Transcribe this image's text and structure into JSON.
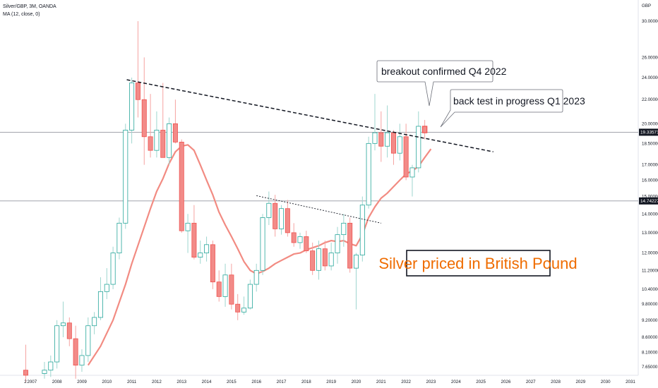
{
  "header": {
    "symbol_line": "Silver/GBP, 3M, OANDA",
    "indicator_line": "MA (12, close, 0)"
  },
  "chart_data": {
    "type": "candlestick",
    "currency_label": "GBP",
    "x_ticks": [
      "2",
      "2007",
      "2008",
      "2009",
      "2010",
      "2011",
      "2012",
      "2013",
      "2014",
      "2015",
      "2016",
      "2017",
      "2018",
      "2019",
      "2020",
      "2021",
      "2022",
      "2023",
      "2024",
      "2025",
      "2026",
      "2027",
      "2028",
      "2029",
      "2030",
      "2031"
    ],
    "y_ticks": [
      "30.00000",
      "26.00000",
      "24.00000",
      "22.00000",
      "20.00000",
      "18.50000",
      "17.00000",
      "16.00000",
      "15.00000",
      "14.00000",
      "13.00000",
      "12.00000",
      "11.20000",
      "10.40000",
      "9.80000",
      "9.20000",
      "8.60000",
      "8.10000",
      "7.65000"
    ],
    "price_lines": [
      {
        "label": "19.33571",
        "value": 19.34
      },
      {
        "label": "14.74227",
        "value": 14.74
      }
    ],
    "candles": [
      {
        "t": 2006.75,
        "o": 7.55,
        "h": 8.35,
        "l": 7.2,
        "c": 7.4
      },
      {
        "t": 2007.5,
        "o": 7.45,
        "h": 7.8,
        "l": 7.3,
        "c": 7.55
      },
      {
        "t": 2007.75,
        "o": 7.55,
        "h": 8.0,
        "l": 7.35,
        "c": 7.8
      },
      {
        "t": 2008.0,
        "o": 7.8,
        "h": 9.2,
        "l": 7.6,
        "c": 9.0
      },
      {
        "t": 2008.25,
        "o": 9.0,
        "h": 9.9,
        "l": 8.6,
        "c": 9.1
      },
      {
        "t": 2008.5,
        "o": 9.1,
        "h": 9.3,
        "l": 8.3,
        "c": 8.55
      },
      {
        "t": 2008.75,
        "o": 8.55,
        "h": 9.0,
        "l": 7.3,
        "c": 7.7
      },
      {
        "t": 2009.0,
        "o": 7.7,
        "h": 8.2,
        "l": 7.5,
        "c": 8.0
      },
      {
        "t": 2009.25,
        "o": 8.0,
        "h": 9.3,
        "l": 7.8,
        "c": 9.0
      },
      {
        "t": 2009.5,
        "o": 9.0,
        "h": 9.5,
        "l": 8.7,
        "c": 9.3
      },
      {
        "t": 2009.75,
        "o": 9.3,
        "h": 10.9,
        "l": 9.2,
        "c": 10.3
      },
      {
        "t": 2010.0,
        "o": 10.3,
        "h": 11.3,
        "l": 10.0,
        "c": 10.6
      },
      {
        "t": 2010.25,
        "o": 10.6,
        "h": 12.3,
        "l": 10.4,
        "c": 12.0
      },
      {
        "t": 2010.5,
        "o": 12.0,
        "h": 13.8,
        "l": 11.7,
        "c": 13.5
      },
      {
        "t": 2010.75,
        "o": 13.5,
        "h": 20.0,
        "l": 13.2,
        "c": 19.5
      },
      {
        "t": 2011.0,
        "o": 19.5,
        "h": 24.0,
        "l": 18.5,
        "c": 23.5
      },
      {
        "t": 2011.25,
        "o": 23.5,
        "h": 30.0,
        "l": 20.5,
        "c": 22.0
      },
      {
        "t": 2011.5,
        "o": 22.0,
        "h": 26.0,
        "l": 17.0,
        "c": 19.0
      },
      {
        "t": 2011.75,
        "o": 19.0,
        "h": 22.5,
        "l": 17.5,
        "c": 18.0
      },
      {
        "t": 2012.0,
        "o": 18.0,
        "h": 21.0,
        "l": 17.5,
        "c": 19.5
      },
      {
        "t": 2012.25,
        "o": 19.5,
        "h": 23.5,
        "l": 17.5,
        "c": 17.5
      },
      {
        "t": 2012.5,
        "o": 17.5,
        "h": 20.5,
        "l": 17.0,
        "c": 20.0
      },
      {
        "t": 2012.75,
        "o": 20.0,
        "h": 22.0,
        "l": 18.5,
        "c": 18.6
      },
      {
        "t": 2013.0,
        "o": 18.6,
        "h": 18.8,
        "l": 13.0,
        "c": 13.1
      },
      {
        "t": 2013.25,
        "o": 13.1,
        "h": 14.0,
        "l": 12.0,
        "c": 13.5
      },
      {
        "t": 2013.5,
        "o": 13.5,
        "h": 14.5,
        "l": 11.7,
        "c": 11.8
      },
      {
        "t": 2013.75,
        "o": 11.8,
        "h": 12.6,
        "l": 11.5,
        "c": 12.0
      },
      {
        "t": 2014.0,
        "o": 12.0,
        "h": 12.8,
        "l": 11.6,
        "c": 12.4
      },
      {
        "t": 2014.25,
        "o": 12.4,
        "h": 12.6,
        "l": 10.4,
        "c": 10.7
      },
      {
        "t": 2014.5,
        "o": 10.7,
        "h": 11.2,
        "l": 9.9,
        "c": 10.1
      },
      {
        "t": 2014.75,
        "o": 10.1,
        "h": 11.5,
        "l": 9.7,
        "c": 11.0
      },
      {
        "t": 2015.0,
        "o": 11.0,
        "h": 11.5,
        "l": 9.6,
        "c": 9.8
      },
      {
        "t": 2015.25,
        "o": 9.8,
        "h": 10.2,
        "l": 9.2,
        "c": 9.5
      },
      {
        "t": 2015.5,
        "o": 9.5,
        "h": 10.1,
        "l": 9.4,
        "c": 9.65
      },
      {
        "t": 2015.75,
        "o": 9.65,
        "h": 10.8,
        "l": 9.6,
        "c": 10.6
      },
      {
        "t": 2016.0,
        "o": 10.6,
        "h": 11.5,
        "l": 10.3,
        "c": 11.2
      },
      {
        "t": 2016.25,
        "o": 11.2,
        "h": 14.0,
        "l": 11.0,
        "c": 13.8
      },
      {
        "t": 2016.5,
        "o": 13.8,
        "h": 15.3,
        "l": 13.4,
        "c": 14.6
      },
      {
        "t": 2016.75,
        "o": 14.6,
        "h": 15.1,
        "l": 12.8,
        "c": 13.2
      },
      {
        "t": 2017.0,
        "o": 13.2,
        "h": 14.5,
        "l": 12.9,
        "c": 14.3
      },
      {
        "t": 2017.25,
        "o": 14.3,
        "h": 14.8,
        "l": 12.8,
        "c": 13.0
      },
      {
        "t": 2017.5,
        "o": 13.0,
        "h": 13.5,
        "l": 12.3,
        "c": 12.5
      },
      {
        "t": 2017.75,
        "o": 12.5,
        "h": 13.0,
        "l": 12.2,
        "c": 12.8
      },
      {
        "t": 2018.0,
        "o": 12.8,
        "h": 13.1,
        "l": 12.0,
        "c": 12.1
      },
      {
        "t": 2018.25,
        "o": 12.1,
        "h": 12.5,
        "l": 11.0,
        "c": 11.2
      },
      {
        "t": 2018.5,
        "o": 11.2,
        "h": 12.6,
        "l": 10.8,
        "c": 12.2
      },
      {
        "t": 2018.75,
        "o": 12.2,
        "h": 12.6,
        "l": 11.2,
        "c": 11.4
      },
      {
        "t": 2019.0,
        "o": 11.4,
        "h": 12.5,
        "l": 11.2,
        "c": 12.0
      },
      {
        "t": 2019.25,
        "o": 12.0,
        "h": 13.3,
        "l": 11.5,
        "c": 12.9
      },
      {
        "t": 2019.5,
        "o": 12.9,
        "h": 14.0,
        "l": 12.3,
        "c": 13.5
      },
      {
        "t": 2019.75,
        "o": 13.5,
        "h": 13.8,
        "l": 11.1,
        "c": 11.3
      },
      {
        "t": 2020.0,
        "o": 11.3,
        "h": 12.0,
        "l": 9.6,
        "c": 11.9
      },
      {
        "t": 2020.25,
        "o": 11.9,
        "h": 15.0,
        "l": 11.6,
        "c": 14.5
      },
      {
        "t": 2020.5,
        "o": 14.5,
        "h": 19.0,
        "l": 14.3,
        "c": 18.5
      },
      {
        "t": 2020.75,
        "o": 18.5,
        "h": 22.5,
        "l": 18.0,
        "c": 19.3
      },
      {
        "t": 2021.0,
        "o": 19.3,
        "h": 21.0,
        "l": 17.2,
        "c": 18.3
      },
      {
        "t": 2021.25,
        "o": 18.3,
        "h": 21.5,
        "l": 17.5,
        "c": 19.3
      },
      {
        "t": 2021.5,
        "o": 19.3,
        "h": 19.5,
        "l": 17.0,
        "c": 17.8
      },
      {
        "t": 2021.75,
        "o": 17.8,
        "h": 20.0,
        "l": 17.3,
        "c": 19.0
      },
      {
        "t": 2022.0,
        "o": 19.0,
        "h": 20.0,
        "l": 16.0,
        "c": 16.2
      },
      {
        "t": 2022.25,
        "o": 16.2,
        "h": 17.0,
        "l": 15.0,
        "c": 16.8
      },
      {
        "t": 2022.5,
        "o": 16.8,
        "h": 21.0,
        "l": 16.5,
        "c": 19.8
      },
      {
        "t": 2022.75,
        "o": 19.8,
        "h": 20.3,
        "l": 18.8,
        "c": 19.3
      }
    ],
    "ma": {
      "name": "MA (12, close, 0)",
      "points": [
        [
          2009.25,
          7.7
        ],
        [
          2009.75,
          8.3
        ],
        [
          2010.25,
          9.2
        ],
        [
          2010.75,
          10.6
        ],
        [
          2011.0,
          11.5
        ],
        [
          2011.5,
          13.3
        ],
        [
          2011.75,
          14.3
        ],
        [
          2012.0,
          15.3
        ],
        [
          2012.25,
          16.1
        ],
        [
          2012.5,
          17.1
        ],
        [
          2012.75,
          17.9
        ],
        [
          2013.0,
          18.3
        ],
        [
          2013.25,
          18.4
        ],
        [
          2013.5,
          18.0
        ],
        [
          2013.75,
          17.0
        ],
        [
          2014.0,
          16.0
        ],
        [
          2014.25,
          15.1
        ],
        [
          2014.5,
          14.1
        ],
        [
          2014.75,
          13.4
        ],
        [
          2015.0,
          12.8
        ],
        [
          2015.25,
          12.2
        ],
        [
          2015.5,
          11.6
        ],
        [
          2015.75,
          11.2
        ],
        [
          2016.0,
          11.05
        ],
        [
          2016.25,
          11.15
        ],
        [
          2016.5,
          11.3
        ],
        [
          2016.75,
          11.5
        ],
        [
          2017.0,
          11.65
        ],
        [
          2017.25,
          11.8
        ],
        [
          2017.5,
          11.95
        ],
        [
          2017.75,
          12.0
        ],
        [
          2018.0,
          12.15
        ],
        [
          2018.25,
          12.25
        ],
        [
          2018.5,
          12.35
        ],
        [
          2018.75,
          12.5
        ],
        [
          2019.0,
          12.6
        ],
        [
          2019.25,
          12.55
        ],
        [
          2019.5,
          12.6
        ],
        [
          2019.75,
          12.45
        ],
        [
          2020.0,
          12.35
        ],
        [
          2020.25,
          12.9
        ],
        [
          2020.5,
          13.8
        ],
        [
          2020.75,
          14.4
        ],
        [
          2021.0,
          14.9
        ],
        [
          2021.25,
          15.2
        ],
        [
          2021.5,
          15.6
        ],
        [
          2021.75,
          16.0
        ],
        [
          2022.0,
          16.4
        ],
        [
          2022.25,
          16.6
        ],
        [
          2022.5,
          16.9
        ],
        [
          2022.75,
          17.5
        ],
        [
          2023.0,
          18.1
        ]
      ]
    },
    "trendlines": [
      {
        "from": [
          2010.8,
          23.8
        ],
        "to": [
          2025.5,
          17.9
        ],
        "style": "dashed-bold"
      },
      {
        "from": [
          2016.0,
          15.05
        ],
        "to": [
          2021.0,
          13.5
        ],
        "style": "dashed-thin"
      }
    ],
    "annotations": [
      {
        "text": "breakout confirmed Q4 2022"
      },
      {
        "text": "back test in progress Q1 2023"
      },
      {
        "text": "Silver priced in British Pound"
      }
    ],
    "colors": {
      "up": "#26a69a",
      "down": "#ef5350",
      "ma": "#f28b82",
      "title": "#ef6c00",
      "tag_bg": "#131722"
    }
  }
}
